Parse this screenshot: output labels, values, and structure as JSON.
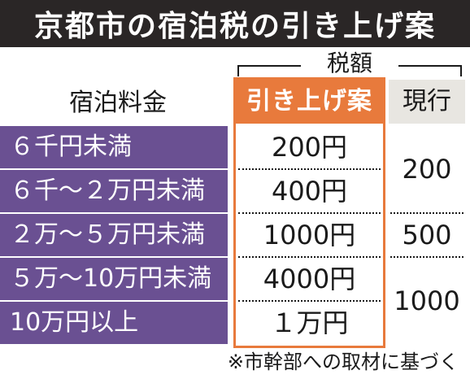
{
  "title": "京都市の宿泊税の引き上げ案",
  "tax_group_label": "税額",
  "columns": {
    "fee": "宿泊料金",
    "proposed": "引き上げ案",
    "current": "現行"
  },
  "rows": [
    {
      "fee": "６千円未満",
      "proposed": "200円"
    },
    {
      "fee": "６千～２万円未満",
      "proposed": "400円"
    },
    {
      "fee": "２万～５万円未満",
      "proposed": "1000円"
    },
    {
      "fee": "５万～10万円未満",
      "proposed": "4000円"
    },
    {
      "fee": "10万円以上",
      "proposed": "１万円"
    }
  ],
  "current_values": [
    "200",
    "500",
    "1000"
  ],
  "footnote": "※市幹部への取材に基づく",
  "colors": {
    "title_bg": "#2a2626",
    "fee_bg": "#6a5092",
    "proposed_accent": "#e87a3c",
    "current_header_bg": "#e8e6e1"
  }
}
